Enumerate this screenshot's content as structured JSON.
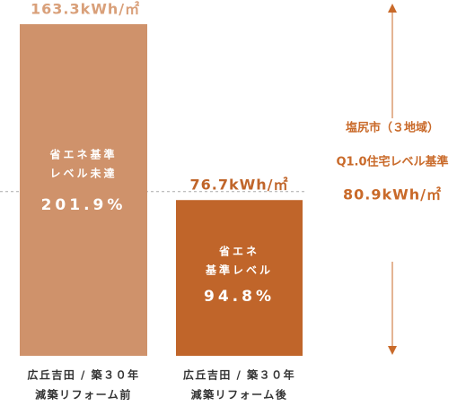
{
  "chart_data": {
    "type": "bar",
    "categories": [
      [
        "広丘吉田 / 築３０年",
        "減築リフォーム前"
      ],
      [
        "広丘吉田 / 築３０年",
        "減築リフォーム後"
      ]
    ],
    "values": [
      163.3,
      76.7
    ],
    "value_labels": [
      "163.3kWh/㎡",
      "76.7kWh/㎡"
    ],
    "colors": [
      "#cf926b",
      "#c0652a"
    ],
    "ylim": [
      0,
      163.3
    ],
    "bar_labels": [
      {
        "lines": [
          "省エネ基準",
          "レベル未達"
        ],
        "percent": "201.9%"
      },
      {
        "lines": [
          "省エネ",
          "基準レベル"
        ],
        "percent": "94.8%"
      }
    ],
    "reference_line": {
      "value": 80.9,
      "label_lines": [
        "塩尻市（３地域）",
        "Q1.0住宅レベル基準"
      ],
      "value_label": "80.9kWh/㎡"
    }
  }
}
